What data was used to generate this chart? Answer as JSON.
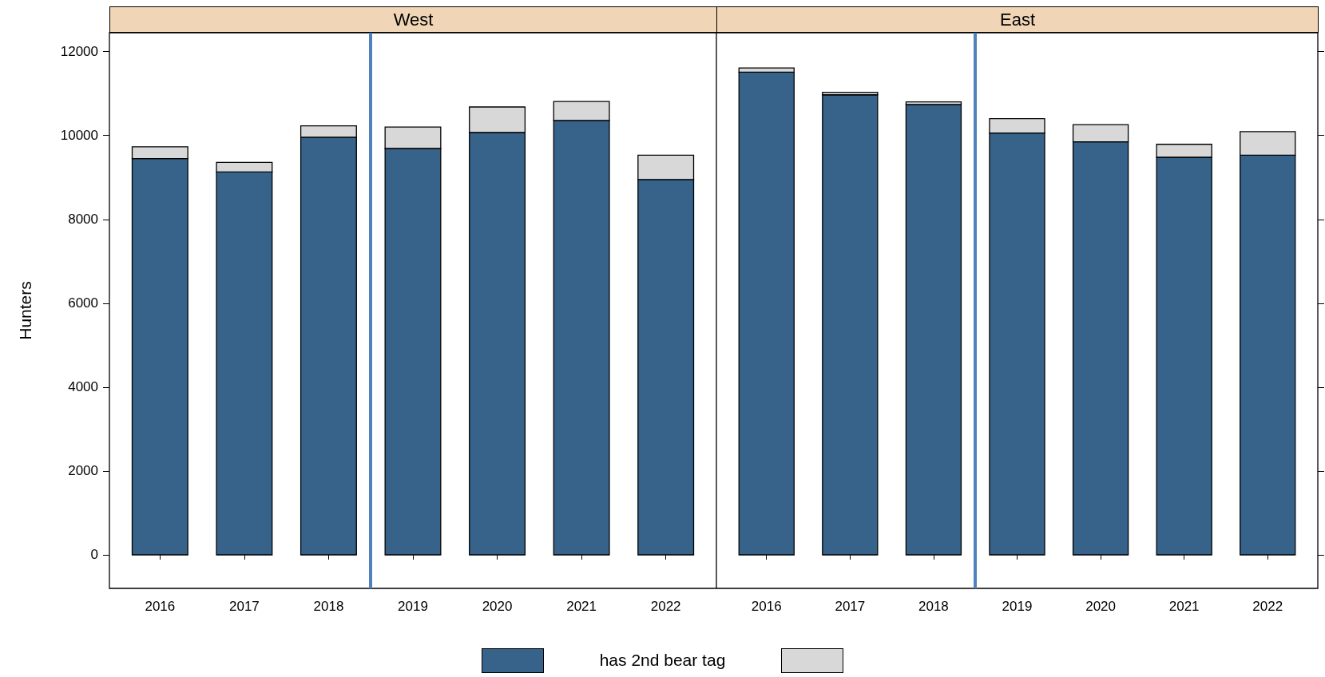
{
  "chart_data": [
    {
      "type": "bar",
      "title": "West",
      "ylabel": "Hunters",
      "stacked": true,
      "x": [
        2016,
        2017,
        2018,
        2019,
        2020,
        2021,
        2022
      ],
      "xlim": [
        2015.4,
        2022.6
      ],
      "xticks": [
        2016,
        2017,
        2018,
        2019,
        2020,
        2021,
        2022
      ],
      "ylim": [
        -800,
        12450
      ],
      "yticks": [
        0,
        2000,
        4000,
        6000,
        8000,
        10000,
        12000
      ],
      "grid": false,
      "legend_title": "has 2nd bear tag",
      "series": [
        {
          "color": "#37638a",
          "values": [
            9450,
            9130,
            9960,
            9690,
            10070,
            10360,
            8950
          ]
        },
        {
          "color": "#d8d8d8",
          "values": [
            280,
            230,
            270,
            510,
            610,
            450,
            580
          ]
        }
      ],
      "ref_lines": [
        {
          "axis": "x",
          "value": 2018.5,
          "color": "#4f81bd"
        }
      ]
    },
    {
      "type": "bar",
      "title": "East",
      "stacked": true,
      "tick_labels": "x",
      "x": [
        2016,
        2017,
        2018,
        2019,
        2020,
        2021,
        2022
      ],
      "xlim": [
        2015.4,
        2022.6
      ],
      "xticks": [
        2016,
        2017,
        2018,
        2019,
        2020,
        2021,
        2022
      ],
      "ylim": [
        -800,
        12450
      ],
      "yticks": [
        0,
        2000,
        4000,
        6000,
        8000,
        10000,
        12000
      ],
      "grid": false,
      "series": [
        {
          "color": "#37638a",
          "values": [
            11510,
            10970,
            10740,
            10060,
            9850,
            9480,
            9530
          ]
        },
        {
          "color": "#d8d8d8",
          "values": [
            100,
            60,
            60,
            340,
            410,
            310,
            560
          ]
        }
      ],
      "ref_lines": [
        {
          "axis": "x",
          "value": 2018.5,
          "color": "#4f81bd"
        }
      ]
    }
  ]
}
